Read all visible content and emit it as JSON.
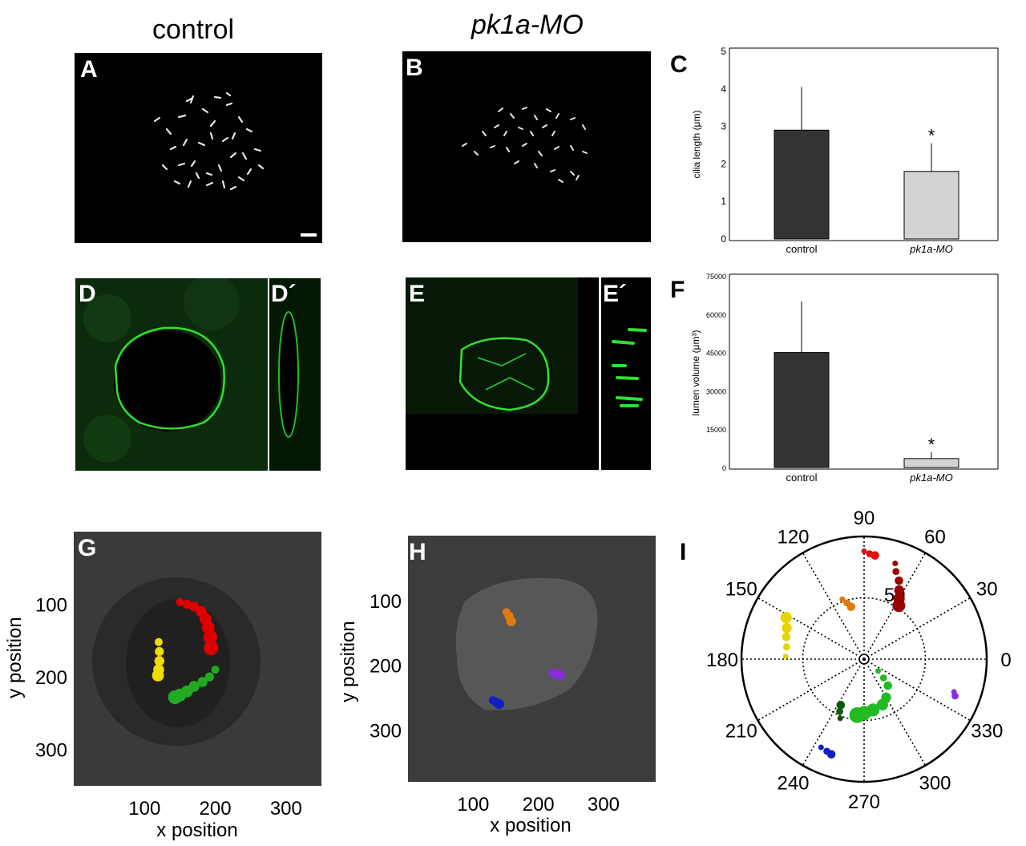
{
  "column_titles": {
    "left": "control",
    "right": "pk1a-MO"
  },
  "panel_labels": {
    "A": "A",
    "B": "B",
    "C": "C",
    "D": "D",
    "Dp": "D´",
    "E": "E",
    "Ep": "E´",
    "F": "F",
    "G": "G",
    "H": "H",
    "I": "I"
  },
  "colors": {
    "control_bar": "#333333",
    "morphant_bar": "#d3d3d3",
    "membrane_green": "#22dd22",
    "cilia_white": "#e6e6e6"
  },
  "chart_data": [
    {
      "type": "bar",
      "panel": "C",
      "categories": [
        "control",
        "pk1a-MO"
      ],
      "values": [
        2.9,
        1.8
      ],
      "errors": [
        1.15,
        0.75
      ],
      "significance": [
        "",
        "*"
      ],
      "ylabel": "cilia length (μm)",
      "yticks": [
        "0",
        "1",
        "2",
        "3",
        "4",
        "5"
      ],
      "ylim": [
        0,
        5
      ]
    },
    {
      "type": "bar",
      "panel": "F",
      "categories": [
        "control",
        "pk1a-MO"
      ],
      "values": [
        45000,
        3500
      ],
      "errors": [
        20000,
        2500
      ],
      "significance": [
        "",
        "*"
      ],
      "ylabel": "lumen volume (μm³)",
      "yticks": [
        "0",
        "15000",
        "30000",
        "45000",
        "60000",
        "75000"
      ],
      "ylim": [
        0,
        75000
      ]
    },
    {
      "type": "scatter",
      "panel": "G",
      "xlabel": "x position",
      "ylabel": "y position",
      "xticks": [
        "100",
        "200",
        "300"
      ],
      "yticks": [
        "100",
        "200",
        "300"
      ],
      "xlim": [
        0,
        350
      ],
      "ylim": [
        0,
        350
      ],
      "series": [
        {
          "color": "#dd0000",
          "points": [
            [
              150,
              97
            ],
            [
              160,
              100
            ],
            [
              170,
              103
            ],
            [
              180,
              110
            ],
            [
              186,
              120
            ],
            [
              190,
              132
            ],
            [
              193,
              145
            ],
            [
              194,
              160
            ]
          ]
        },
        {
          "color": "#f0dd00",
          "points": [
            [
              120,
              152
            ],
            [
              121,
              165
            ],
            [
              121,
              178
            ],
            [
              120,
              190
            ],
            [
              119,
              198
            ]
          ]
        },
        {
          "color": "#22aa22",
          "points": [
            [
              200,
              190
            ],
            [
              192,
              200
            ],
            [
              182,
              207
            ],
            [
              170,
              213
            ],
            [
              160,
              220
            ],
            [
              150,
              225
            ],
            [
              143,
              228
            ]
          ]
        }
      ]
    },
    {
      "type": "scatter",
      "panel": "H",
      "xlabel": "x position",
      "ylabel": "y position",
      "xticks": [
        "100",
        "200",
        "300"
      ],
      "yticks": [
        "100",
        "200",
        "300"
      ],
      "xlim": [
        0,
        380
      ],
      "ylim": [
        0,
        380
      ],
      "series": [
        {
          "color": "#e07a10",
          "points": [
            [
              151,
              118
            ],
            [
              155,
              124
            ],
            [
              158,
              132
            ]
          ]
        },
        {
          "color": "#8a2be2",
          "points": [
            [
              222,
              212
            ],
            [
              227,
              213
            ],
            [
              233,
              215
            ]
          ]
        },
        {
          "color": "#1020c0",
          "points": [
            [
              130,
              254
            ],
            [
              135,
              257
            ],
            [
              140,
              260
            ]
          ]
        }
      ]
    },
    {
      "type": "polar",
      "panel": "I",
      "angle_ticks": [
        "0",
        "30",
        "60",
        "90",
        "120",
        "150",
        "180",
        "210",
        "240",
        "270",
        "300",
        "330"
      ],
      "radial_tick": "50",
      "rlim": [
        0,
        100
      ],
      "series": [
        {
          "color": "#e01010",
          "points": [
            [
              90,
              88
            ],
            [
              87,
              86
            ],
            [
              84,
              85
            ]
          ]
        },
        {
          "color": "#9a0000",
          "points": [
            [
              72,
              82
            ],
            [
              70,
              76
            ],
            [
              66,
              70
            ],
            [
              63,
              63
            ],
            [
              60,
              57
            ],
            [
              57,
              52
            ]
          ]
        },
        {
          "color": "#e07a10",
          "points": [
            [
              110,
              52
            ],
            [
              107,
              48
            ],
            [
              104,
              44
            ]
          ]
        },
        {
          "color": "#e6d400",
          "points": [
            [
              178,
              64
            ],
            [
              171,
              64
            ],
            [
              164,
              66
            ],
            [
              158,
              68
            ],
            [
              152,
              72
            ]
          ]
        },
        {
          "color": "#22bb22",
          "points": [
            [
              320,
              15
            ],
            [
              316,
              22
            ],
            [
              312,
              29
            ],
            [
              300,
              36
            ],
            [
              292,
              40
            ],
            [
              280,
              42
            ],
            [
              270,
              44
            ],
            [
              263,
              46
            ]
          ]
        },
        {
          "color": "#0a5a0a",
          "points": [
            [
              248,
              52
            ],
            [
              245,
              47
            ],
            [
              243,
              42
            ]
          ]
        },
        {
          "color": "#8a2be2",
          "points": [
            [
              340,
              78
            ],
            [
              338,
              80
            ]
          ]
        },
        {
          "color": "#1020c0",
          "points": [
            [
              244,
              80
            ],
            [
              248,
              81
            ],
            [
              251,
              82
            ]
          ]
        }
      ]
    }
  ]
}
